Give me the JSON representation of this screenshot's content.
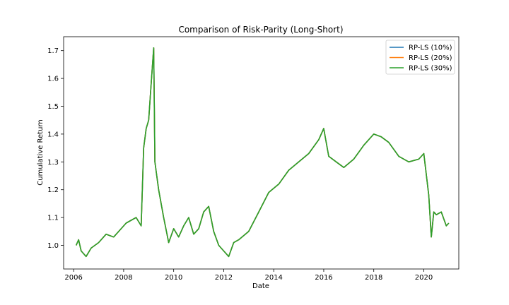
{
  "chart_data": {
    "type": "line",
    "title": "Comparison of Risk-Parity (Long-Short)",
    "xlabel": "Date",
    "ylabel": "Cumulative Return",
    "xlim": [
      2005.6,
      2021.4
    ],
    "ylim": [
      0.915,
      1.75
    ],
    "x_ticks": [
      2006,
      2008,
      2010,
      2012,
      2014,
      2016,
      2018,
      2020
    ],
    "y_ticks": [
      1.0,
      1.1,
      1.2,
      1.3,
      1.4,
      1.5,
      1.6,
      1.7
    ],
    "grid": false,
    "legend_position": "top-right",
    "colors": [
      "#1f77b4",
      "#ff7f0e",
      "#2ca02c"
    ],
    "series": [
      {
        "name": "RP-LS (10%)"
      },
      {
        "name": "RP-LS (20%)"
      },
      {
        "name": "RP-LS (30%)"
      }
    ],
    "x": [
      2006.1,
      2006.2,
      2006.3,
      2006.5,
      2006.7,
      2007.0,
      2007.3,
      2007.6,
      2007.9,
      2008.1,
      2008.3,
      2008.5,
      2008.7,
      2008.8,
      2008.9,
      2009.0,
      2009.1,
      2009.2,
      2009.25,
      2009.4,
      2009.6,
      2009.8,
      2010.0,
      2010.2,
      2010.4,
      2010.6,
      2010.8,
      2011.0,
      2011.2,
      2011.4,
      2011.6,
      2011.8,
      2012.0,
      2012.2,
      2012.4,
      2012.6,
      2013.0,
      2013.4,
      2013.8,
      2014.2,
      2014.6,
      2015.0,
      2015.4,
      2015.8,
      2016.0,
      2016.2,
      2016.5,
      2016.8,
      2017.2,
      2017.6,
      2018.0,
      2018.3,
      2018.6,
      2019.0,
      2019.4,
      2019.8,
      2020.0,
      2020.2,
      2020.3,
      2020.4,
      2020.5,
      2020.7,
      2020.9,
      2021.0
    ],
    "values": [
      1.0,
      1.02,
      0.98,
      0.96,
      0.99,
      1.01,
      1.04,
      1.03,
      1.06,
      1.08,
      1.09,
      1.1,
      1.07,
      1.35,
      1.42,
      1.45,
      1.58,
      1.71,
      1.3,
      1.2,
      1.1,
      1.01,
      1.06,
      1.03,
      1.07,
      1.1,
      1.04,
      1.06,
      1.12,
      1.14,
      1.05,
      1.0,
      0.98,
      0.96,
      1.01,
      1.02,
      1.05,
      1.12,
      1.19,
      1.22,
      1.27,
      1.3,
      1.33,
      1.38,
      1.42,
      1.32,
      1.3,
      1.28,
      1.31,
      1.36,
      1.4,
      1.39,
      1.37,
      1.32,
      1.3,
      1.31,
      1.33,
      1.18,
      1.03,
      1.12,
      1.11,
      1.12,
      1.07,
      1.08
    ]
  }
}
